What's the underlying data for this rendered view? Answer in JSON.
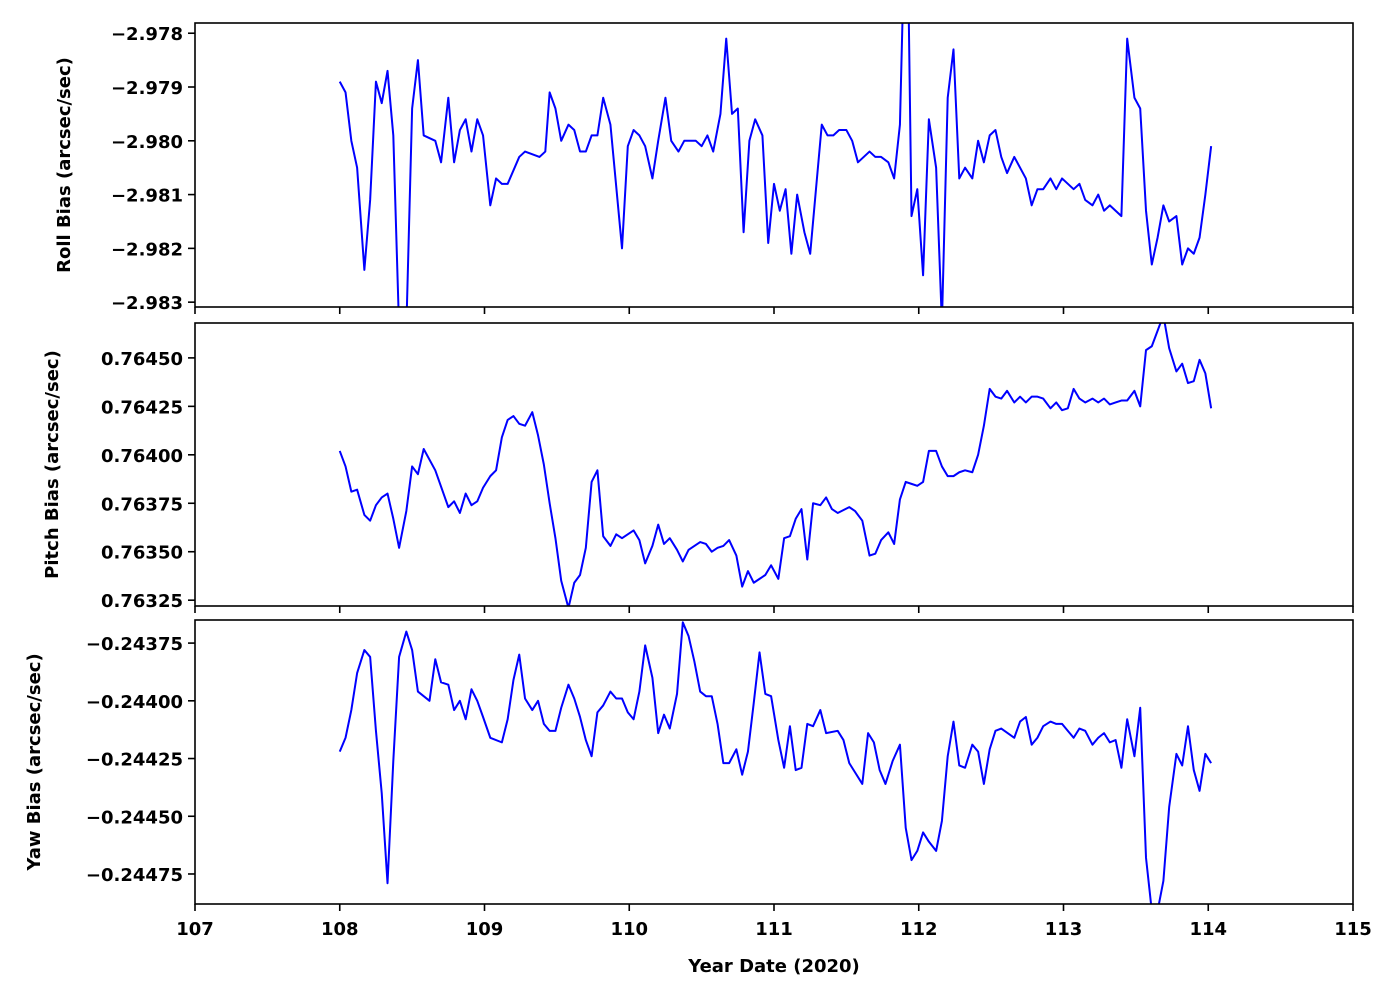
{
  "chart_data": [
    {
      "type": "line",
      "ylabel": "Roll Bias (arcsec/sec)",
      "color": "#0000ff",
      "xlim": [
        107,
        115
      ],
      "ylim": [
        -2.98309,
        -2.97781
      ],
      "yticks": [
        {
          "value": -2.983,
          "label": "−2.983"
        },
        {
          "value": -2.982,
          "label": "−2.982"
        },
        {
          "value": -2.981,
          "label": "−2.981"
        },
        {
          "value": -2.98,
          "label": "−2.980"
        },
        {
          "value": -2.979,
          "label": "−2.979"
        },
        {
          "value": -2.978,
          "label": "−2.978"
        }
      ],
      "x": [
        108.0,
        108.04,
        108.08,
        108.12,
        108.17,
        108.21,
        108.25,
        108.29,
        108.33,
        108.37,
        108.41,
        108.46,
        108.5,
        108.54,
        108.58,
        108.66,
        108.7,
        108.75,
        108.79,
        108.83,
        108.87,
        108.91,
        108.95,
        108.99,
        109.04,
        109.08,
        109.12,
        109.16,
        109.24,
        109.28,
        109.38,
        109.42,
        109.45,
        109.49,
        109.53,
        109.58,
        109.62,
        109.66,
        109.7,
        109.74,
        109.78,
        109.82,
        109.87,
        109.95,
        109.99,
        110.03,
        110.07,
        110.11,
        110.16,
        110.2,
        110.25,
        110.29,
        110.34,
        110.38,
        110.46,
        110.5,
        110.54,
        110.58,
        110.63,
        110.67,
        110.71,
        110.75,
        110.79,
        110.83,
        110.87,
        110.92,
        110.96,
        111.0,
        111.04,
        111.08,
        111.12,
        111.16,
        111.21,
        111.25,
        111.29,
        111.33,
        111.37,
        111.41,
        111.45,
        111.5,
        111.54,
        111.58,
        111.66,
        111.7,
        111.74,
        111.79,
        111.83,
        111.87,
        111.89,
        111.93,
        111.95,
        111.99,
        112.03,
        112.07,
        112.12,
        112.16,
        112.2,
        112.24,
        112.28,
        112.32,
        112.37,
        112.41,
        112.45,
        112.49,
        112.53,
        112.57,
        112.61,
        112.66,
        112.74,
        112.78,
        112.82,
        112.86,
        112.91,
        112.95,
        112.99,
        113.07,
        113.11,
        113.15,
        113.2,
        113.24,
        113.28,
        113.32,
        113.36,
        113.4,
        113.44,
        113.49,
        113.53,
        113.57,
        113.61,
        113.65,
        113.69,
        113.73,
        113.78,
        113.82,
        113.86,
        113.9,
        113.94,
        113.98,
        114.02
      ],
      "values": [
        -2.9789,
        -2.9791,
        -2.98,
        -2.9805,
        -2.9824,
        -2.9811,
        -2.9789,
        -2.9793,
        -2.9787,
        -2.9799,
        -2.9835,
        -2.9835,
        -2.9794,
        -2.9785,
        -2.9799,
        -2.98,
        -2.9804,
        -2.9792,
        -2.9804,
        -2.9798,
        -2.9796,
        -2.9802,
        -2.9796,
        -2.9799,
        -2.9812,
        -2.9807,
        -2.9808,
        -2.9808,
        -2.9803,
        -2.9802,
        -2.9803,
        -2.9802,
        -2.9791,
        -2.9794,
        -2.98,
        -2.9797,
        -2.9798,
        -2.9802,
        -2.9802,
        -2.9799,
        -2.9799,
        -2.9792,
        -2.9797,
        -2.982,
        -2.9801,
        -2.9798,
        -2.9799,
        -2.9801,
        -2.9807,
        -2.98,
        -2.9792,
        -2.98,
        -2.9802,
        -2.98,
        -2.98,
        -2.9801,
        -2.9799,
        -2.9802,
        -2.9795,
        -2.9781,
        -2.9795,
        -2.9794,
        -2.9817,
        -2.98,
        -2.9796,
        -2.9799,
        -2.9819,
        -2.9808,
        -2.9813,
        -2.9809,
        -2.9821,
        -2.981,
        -2.9817,
        -2.9821,
        -2.9809,
        -2.9797,
        -2.9799,
        -2.9799,
        -2.9798,
        -2.9798,
        -2.98,
        -2.9804,
        -2.9802,
        -2.9803,
        -2.9803,
        -2.9804,
        -2.9807,
        -2.9797,
        -2.9775,
        -2.9775,
        -2.9814,
        -2.9809,
        -2.9825,
        -2.9796,
        -2.9805,
        -2.9834,
        -2.9792,
        -2.9783,
        -2.9807,
        -2.9805,
        -2.9807,
        -2.98,
        -2.9804,
        -2.9799,
        -2.9798,
        -2.9803,
        -2.9806,
        -2.9803,
        -2.9807,
        -2.9812,
        -2.9809,
        -2.9809,
        -2.9807,
        -2.9809,
        -2.9807,
        -2.9809,
        -2.9808,
        -2.9811,
        -2.9812,
        -2.981,
        -2.9813,
        -2.9812,
        -2.9813,
        -2.9814,
        -2.9781,
        -2.9792,
        -2.9794,
        -2.9813,
        -2.9823,
        -2.9818,
        -2.9812,
        -2.9815,
        -2.9814,
        -2.9823,
        -2.982,
        -2.9821,
        -2.9818,
        -2.981,
        -2.9801
      ]
    },
    {
      "type": "line",
      "ylabel": "Pitch Bias (arcsec/sec)",
      "color": "#0000ff",
      "xlim": [
        107,
        115
      ],
      "ylim": [
        0.76322,
        0.76468
      ],
      "yticks": [
        {
          "value": 0.76325,
          "label": "0.76325"
        },
        {
          "value": 0.7635,
          "label": "0.76350"
        },
        {
          "value": 0.76375,
          "label": "0.76375"
        },
        {
          "value": 0.764,
          "label": "0.76400"
        },
        {
          "value": 0.76425,
          "label": "0.76425"
        },
        {
          "value": 0.7645,
          "label": "0.76450"
        }
      ],
      "x": [
        108.0,
        108.04,
        108.08,
        108.12,
        108.17,
        108.21,
        108.25,
        108.29,
        108.33,
        108.37,
        108.41,
        108.46,
        108.5,
        108.54,
        108.58,
        108.66,
        108.75,
        108.79,
        108.83,
        108.87,
        108.91,
        108.95,
        108.99,
        109.04,
        109.08,
        109.12,
        109.16,
        109.2,
        109.24,
        109.28,
        109.33,
        109.37,
        109.41,
        109.45,
        109.49,
        109.53,
        109.58,
        109.62,
        109.66,
        109.7,
        109.74,
        109.78,
        109.82,
        109.87,
        109.91,
        109.95,
        110.03,
        110.07,
        110.11,
        110.16,
        110.2,
        110.24,
        110.28,
        110.33,
        110.37,
        110.41,
        110.49,
        110.53,
        110.57,
        110.61,
        110.65,
        110.69,
        110.74,
        110.78,
        110.82,
        110.86,
        110.9,
        110.94,
        110.98,
        111.03,
        111.07,
        111.11,
        111.15,
        111.19,
        111.23,
        111.27,
        111.32,
        111.36,
        111.4,
        111.44,
        111.52,
        111.56,
        111.61,
        111.66,
        111.7,
        111.74,
        111.79,
        111.83,
        111.87,
        111.91,
        111.95,
        111.99,
        112.03,
        112.07,
        112.12,
        112.16,
        112.2,
        112.24,
        112.28,
        112.32,
        112.37,
        112.41,
        112.45,
        112.49,
        112.53,
        112.57,
        112.61,
        112.66,
        112.7,
        112.74,
        112.78,
        112.82,
        112.86,
        112.91,
        112.95,
        112.99,
        113.03,
        113.07,
        113.11,
        113.15,
        113.2,
        113.24,
        113.28,
        113.32,
        113.36,
        113.4,
        113.44,
        113.49,
        113.53,
        113.57,
        113.61,
        113.65,
        113.69,
        113.73,
        113.78,
        113.82,
        113.86,
        113.9,
        113.94,
        113.98,
        114.02
      ],
      "values": [
        0.76402,
        0.76394,
        0.76381,
        0.76382,
        0.76369,
        0.76366,
        0.76374,
        0.76378,
        0.7638,
        0.76367,
        0.76352,
        0.76371,
        0.76394,
        0.7639,
        0.76403,
        0.76392,
        0.76373,
        0.76376,
        0.7637,
        0.7638,
        0.76374,
        0.76376,
        0.76383,
        0.76389,
        0.76392,
        0.76409,
        0.76418,
        0.7642,
        0.76416,
        0.76415,
        0.76422,
        0.7641,
        0.76395,
        0.76375,
        0.76357,
        0.76335,
        0.76321,
        0.76334,
        0.76338,
        0.76352,
        0.76386,
        0.76392,
        0.76358,
        0.76353,
        0.76359,
        0.76357,
        0.76361,
        0.76356,
        0.76344,
        0.76353,
        0.76364,
        0.76354,
        0.76357,
        0.76351,
        0.76345,
        0.76351,
        0.76355,
        0.76354,
        0.7635,
        0.76352,
        0.76353,
        0.76356,
        0.76348,
        0.76332,
        0.7634,
        0.76334,
        0.76336,
        0.76338,
        0.76343,
        0.76336,
        0.76357,
        0.76358,
        0.76367,
        0.76372,
        0.76346,
        0.76375,
        0.76374,
        0.76378,
        0.76372,
        0.7637,
        0.76373,
        0.76371,
        0.76366,
        0.76348,
        0.76349,
        0.76356,
        0.7636,
        0.76354,
        0.76377,
        0.76386,
        0.76385,
        0.76384,
        0.76386,
        0.76402,
        0.76402,
        0.76394,
        0.76389,
        0.76389,
        0.76391,
        0.76392,
        0.76391,
        0.764,
        0.76415,
        0.76434,
        0.7643,
        0.76429,
        0.76433,
        0.76427,
        0.7643,
        0.76427,
        0.7643,
        0.7643,
        0.76429,
        0.76424,
        0.76427,
        0.76423,
        0.76424,
        0.76434,
        0.76429,
        0.76427,
        0.76429,
        0.76427,
        0.76429,
        0.76426,
        0.76427,
        0.76428,
        0.76428,
        0.76433,
        0.76425,
        0.76454,
        0.76456,
        0.76464,
        0.76472,
        0.76455,
        0.76443,
        0.76447,
        0.76437,
        0.76438,
        0.76449,
        0.76442,
        0.76424
      ]
    },
    {
      "type": "line",
      "ylabel": "Yaw Bias (arcsec/sec)",
      "xlabel": "Year Date (2020)",
      "color": "#0000ff",
      "xlim": [
        107,
        115
      ],
      "xticks": [
        107,
        108,
        109,
        110,
        111,
        112,
        113,
        114,
        115
      ],
      "ylim": [
        -0.24488,
        -0.24365
      ],
      "yticks": [
        {
          "value": -0.24475,
          "label": "−0.24475"
        },
        {
          "value": -0.2445,
          "label": "−0.24450"
        },
        {
          "value": -0.24425,
          "label": "−0.24425"
        },
        {
          "value": -0.244,
          "label": "−0.24400"
        },
        {
          "value": -0.24375,
          "label": "−0.24375"
        }
      ],
      "x": [
        108.0,
        108.04,
        108.08,
        108.12,
        108.17,
        108.21,
        108.25,
        108.29,
        108.33,
        108.37,
        108.41,
        108.46,
        108.5,
        108.54,
        108.62,
        108.66,
        108.7,
        108.75,
        108.79,
        108.83,
        108.87,
        108.91,
        108.95,
        108.99,
        109.04,
        109.12,
        109.16,
        109.2,
        109.24,
        109.28,
        109.33,
        109.37,
        109.41,
        109.45,
        109.49,
        109.53,
        109.58,
        109.62,
        109.66,
        109.7,
        109.74,
        109.78,
        109.82,
        109.87,
        109.91,
        109.95,
        109.99,
        110.03,
        110.07,
        110.11,
        110.16,
        110.2,
        110.24,
        110.28,
        110.33,
        110.37,
        110.41,
        110.45,
        110.49,
        110.53,
        110.57,
        110.61,
        110.65,
        110.69,
        110.74,
        110.78,
        110.82,
        110.86,
        110.9,
        110.94,
        110.98,
        111.03,
        111.07,
        111.11,
        111.15,
        111.19,
        111.23,
        111.27,
        111.32,
        111.36,
        111.44,
        111.48,
        111.52,
        111.56,
        111.61,
        111.65,
        111.69,
        111.73,
        111.77,
        111.82,
        111.87,
        111.91,
        111.95,
        111.99,
        112.03,
        112.07,
        112.12,
        112.16,
        112.2,
        112.24,
        112.28,
        112.32,
        112.37,
        112.41,
        112.45,
        112.49,
        112.53,
        112.57,
        112.66,
        112.7,
        112.74,
        112.78,
        112.82,
        112.86,
        112.91,
        112.95,
        112.99,
        113.03,
        113.07,
        113.11,
        113.15,
        113.2,
        113.24,
        113.28,
        113.32,
        113.36,
        113.4,
        113.44,
        113.49,
        113.53,
        113.57,
        113.61,
        113.65,
        113.69,
        113.73,
        113.78,
        113.82,
        113.86,
        113.9,
        113.94,
        113.98,
        114.02
      ],
      "values": [
        -0.24422,
        -0.24416,
        -0.24404,
        -0.24388,
        -0.24378,
        -0.24381,
        -0.24413,
        -0.2444,
        -0.24479,
        -0.24426,
        -0.24381,
        -0.2437,
        -0.24378,
        -0.24396,
        -0.244,
        -0.24382,
        -0.24392,
        -0.24393,
        -0.24404,
        -0.244,
        -0.24408,
        -0.24395,
        -0.244,
        -0.24407,
        -0.24416,
        -0.24418,
        -0.24408,
        -0.24391,
        -0.2438,
        -0.24399,
        -0.24404,
        -0.244,
        -0.2441,
        -0.24413,
        -0.24413,
        -0.24403,
        -0.24393,
        -0.24399,
        -0.24407,
        -0.24417,
        -0.24424,
        -0.24405,
        -0.24402,
        -0.24396,
        -0.24399,
        -0.24399,
        -0.24405,
        -0.24408,
        -0.24396,
        -0.24376,
        -0.2439,
        -0.24414,
        -0.24406,
        -0.24412,
        -0.24397,
        -0.24366,
        -0.24372,
        -0.24383,
        -0.24396,
        -0.24398,
        -0.24398,
        -0.2441,
        -0.24427,
        -0.24427,
        -0.24421,
        -0.24432,
        -0.24422,
        -0.24401,
        -0.24379,
        -0.24397,
        -0.24398,
        -0.24417,
        -0.24429,
        -0.24411,
        -0.2443,
        -0.24429,
        -0.2441,
        -0.24411,
        -0.24404,
        -0.24414,
        -0.24413,
        -0.24417,
        -0.24427,
        -0.24431,
        -0.24436,
        -0.24414,
        -0.24418,
        -0.2443,
        -0.24436,
        -0.24426,
        -0.24419,
        -0.24455,
        -0.24469,
        -0.24465,
        -0.24457,
        -0.24461,
        -0.24465,
        -0.24452,
        -0.24424,
        -0.24409,
        -0.24428,
        -0.24429,
        -0.24419,
        -0.24422,
        -0.24436,
        -0.24421,
        -0.24413,
        -0.24412,
        -0.24416,
        -0.24409,
        -0.24407,
        -0.24419,
        -0.24416,
        -0.24411,
        -0.24409,
        -0.2441,
        -0.2441,
        -0.24413,
        -0.24416,
        -0.24412,
        -0.24413,
        -0.24419,
        -0.24416,
        -0.24414,
        -0.24418,
        -0.24417,
        -0.24429,
        -0.24408,
        -0.24424,
        -0.24403,
        -0.24468,
        -0.24491,
        -0.24491,
        -0.24478,
        -0.24446,
        -0.24423,
        -0.24428,
        -0.24411,
        -0.2443,
        -0.24439,
        -0.24423,
        -0.24427
      ]
    }
  ]
}
